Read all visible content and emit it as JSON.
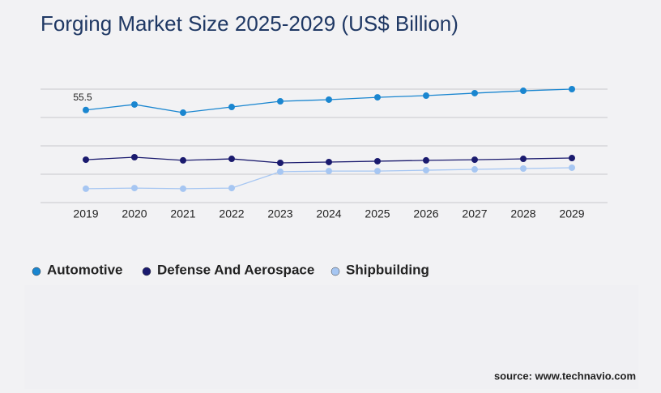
{
  "chart_data": {
    "type": "line",
    "title": "Forging Market Size 2025-2029 (US$ Billion)",
    "source": "source: www.technavio.com",
    "categories": [
      "2019",
      "2020",
      "2021",
      "2022",
      "2023",
      "2024",
      "2025",
      "2026",
      "2027",
      "2028",
      "2029"
    ],
    "series": [
      {
        "name": "Automotive",
        "color": "#1a86d0",
        "values": [
          55.5,
          58.8,
          53.9,
          57.3,
          60.7,
          61.7,
          63.1,
          64.1,
          65.6,
          67.0,
          68.0
        ]
      },
      {
        "name": "Defense And Aerospace",
        "color": "#1a1a6e",
        "values": [
          25.7,
          27.2,
          25.3,
          26.2,
          23.8,
          24.3,
          24.8,
          25.3,
          25.7,
          26.2,
          26.7
        ]
      },
      {
        "name": "Shipbuilding",
        "color": "#a6c6f2",
        "values": [
          8.3,
          8.7,
          8.3,
          8.7,
          18.5,
          18.9,
          18.9,
          19.4,
          19.9,
          20.4,
          20.9
        ]
      }
    ],
    "ylim": [
      0,
      68
    ],
    "yticks": [
      0,
      17,
      34,
      51,
      68
    ],
    "grid": true,
    "legend": "bottom"
  }
}
